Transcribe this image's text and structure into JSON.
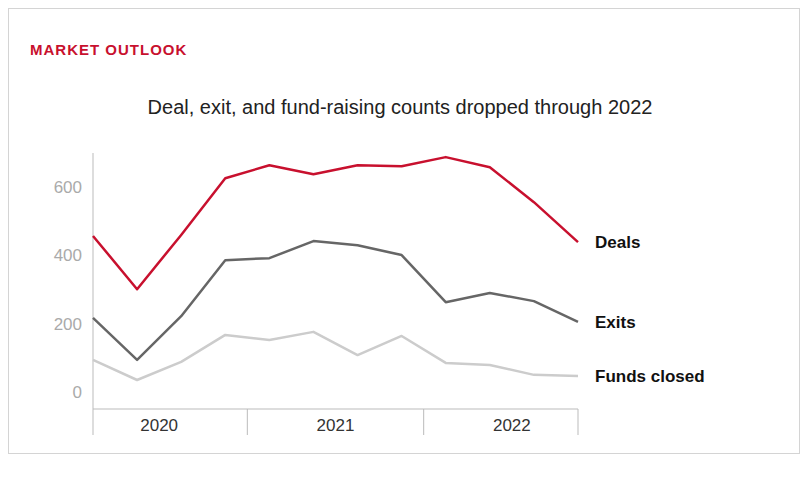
{
  "chart_data": {
    "type": "line",
    "header": "MARKET OUTLOOK",
    "title": "Deal, exit, and fund-raising counts dropped through 2022",
    "categories": [
      null,
      "2020",
      null,
      null,
      null,
      "2021",
      null,
      null,
      null,
      "2022",
      null,
      null
    ],
    "series": [
      {
        "name": "Deals",
        "color": "#c8102e",
        "values": [
          457,
          301,
          460,
          626,
          664,
          638,
          664,
          661,
          688,
          658,
          556,
          439
        ]
      },
      {
        "name": "Exits",
        "color": "#666666",
        "values": [
          217,
          94,
          222,
          386,
          392,
          442,
          430,
          401,
          263,
          290,
          266,
          205
        ]
      },
      {
        "name": "Funds closed",
        "color": "#cccccc",
        "values": [
          94,
          35,
          88,
          167,
          152,
          176,
          108,
          164,
          85,
          79,
          50,
          47
        ]
      }
    ],
    "ylim": [
      -50,
      700
    ],
    "yticks": [
      0,
      200,
      400,
      600
    ],
    "grid": false
  }
}
